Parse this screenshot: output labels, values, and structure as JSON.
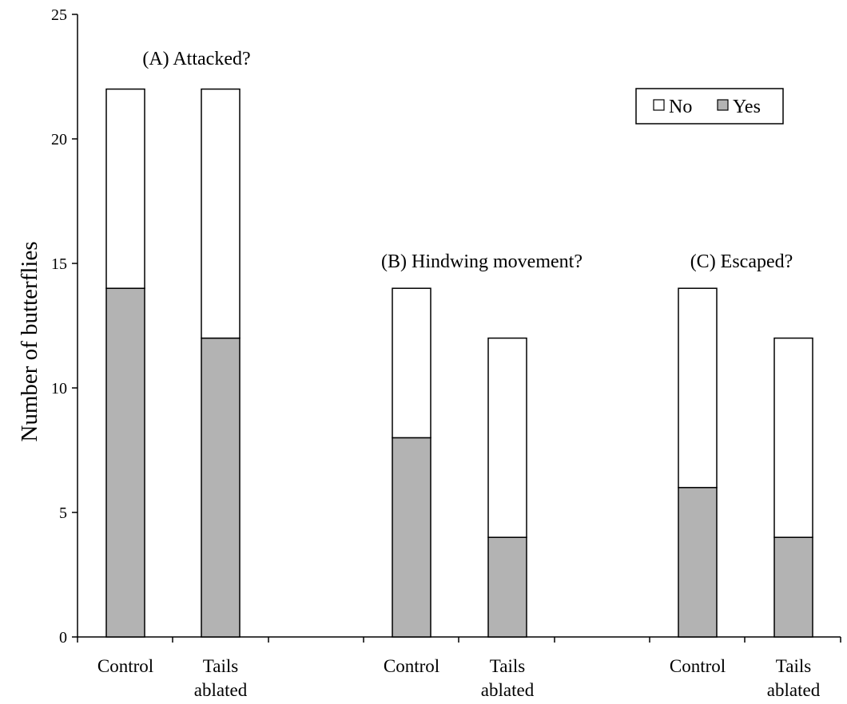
{
  "chart_data": {
    "type": "bar",
    "stacked": true,
    "ylabel": "Number of butterflies",
    "ylim": [
      0,
      25
    ],
    "yticks": [
      0,
      5,
      10,
      15,
      20,
      25
    ],
    "grid": false,
    "legend": {
      "placement": "top-right",
      "entries": [
        {
          "name": "No",
          "color": "#ffffff"
        },
        {
          "name": "Yes",
          "color": "#b3b3b3"
        }
      ]
    },
    "groups": [
      {
        "label": "(A) Attacked?",
        "bars": [
          {
            "category": [
              "Control"
            ],
            "yes": 14,
            "no": 8,
            "total": 22
          },
          {
            "category": [
              "Tails",
              "ablated"
            ],
            "yes": 12,
            "no": 10,
            "total": 22
          }
        ]
      },
      {
        "label": "(B) Hindwing movement?",
        "bars": [
          {
            "category": [
              "Control"
            ],
            "yes": 8,
            "no": 6,
            "total": 14
          },
          {
            "category": [
              "Tails",
              "ablated"
            ],
            "yes": 4,
            "no": 8,
            "total": 12
          }
        ]
      },
      {
        "label": "(C) Escaped?",
        "bars": [
          {
            "category": [
              "Control"
            ],
            "yes": 6,
            "no": 8,
            "total": 14
          },
          {
            "category": [
              "Tails",
              "ablated"
            ],
            "yes": 4,
            "no": 8,
            "total": 12
          }
        ]
      }
    ]
  }
}
